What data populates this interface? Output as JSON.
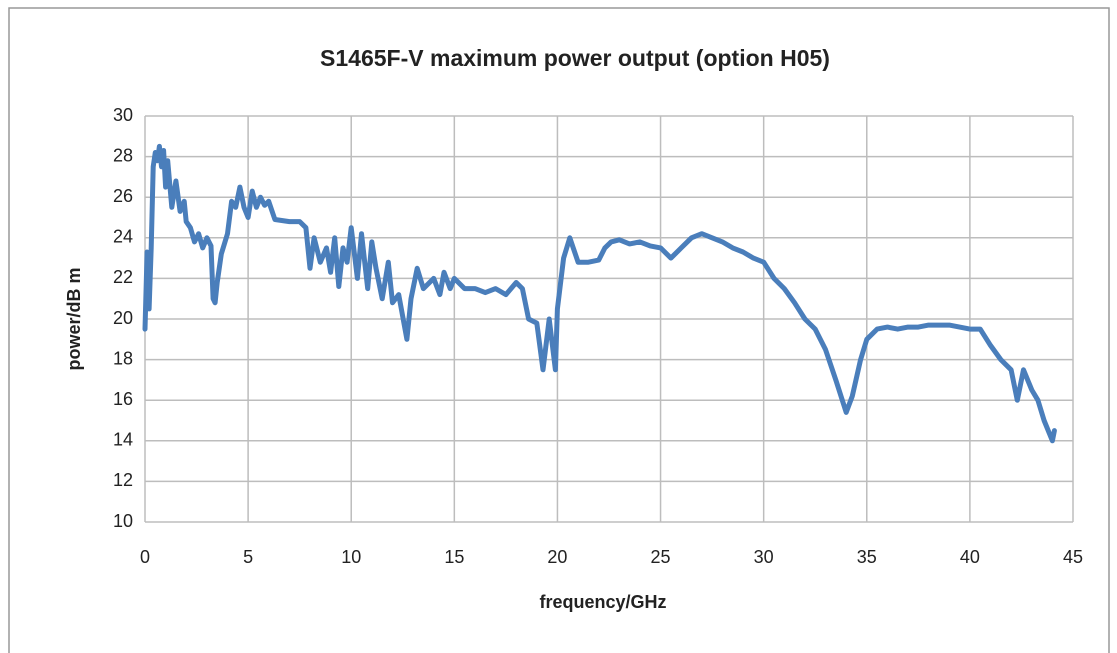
{
  "chart_data": {
    "type": "line",
    "title": "S1465F-V maximum power output (option H05)",
    "x_label": "frequency/GHz",
    "y_label": "power/dB m",
    "x": [
      0,
      0.1,
      0.2,
      0.3,
      0.4,
      0.5,
      0.6,
      0.7,
      0.8,
      0.9,
      1.0,
      1.1,
      1.3,
      1.5,
      1.7,
      1.9,
      2.0,
      2.2,
      2.4,
      2.6,
      2.8,
      3.0,
      3.2,
      3.3,
      3.4,
      3.5,
      3.7,
      4.0,
      4.2,
      4.4,
      4.6,
      4.8,
      5.0,
      5.2,
      5.4,
      5.6,
      5.8,
      6.0,
      6.3,
      7.0,
      7.5,
      7.8,
      8.0,
      8.2,
      8.5,
      8.8,
      9.0,
      9.2,
      9.4,
      9.6,
      9.8,
      10.0,
      10.3,
      10.5,
      10.8,
      11.0,
      11.2,
      11.5,
      11.8,
      12.0,
      12.3,
      12.7,
      12.9,
      13.2,
      13.5,
      14.0,
      14.3,
      14.5,
      14.8,
      15.0,
      15.5,
      16.0,
      16.5,
      17.0,
      17.5,
      18.0,
      18.3,
      18.6,
      19.0,
      19.3,
      19.6,
      19.9,
      20.0,
      20.3,
      20.6,
      21.0,
      21.5,
      22.0,
      22.3,
      22.6,
      23.0,
      23.5,
      24.0,
      24.5,
      25.0,
      25.5,
      26.0,
      26.5,
      27.0,
      27.5,
      28.0,
      28.5,
      29.0,
      29.5,
      30.0,
      30.5,
      31.0,
      31.5,
      32.0,
      32.5,
      33.0,
      33.5,
      34.0,
      34.3,
      34.7,
      35.0,
      35.5,
      36.0,
      36.5,
      37.0,
      37.5,
      38.0,
      38.5,
      39.0,
      39.5,
      40.0,
      40.5,
      41.0,
      41.5,
      42.0,
      42.3,
      42.6,
      43.0,
      43.3,
      43.6,
      44.0,
      44.1
    ],
    "series": [
      {
        "name": "power",
        "color": "#4a7ebb",
        "values": [
          19.5,
          23.3,
          20.5,
          23.5,
          27.5,
          28.2,
          27.8,
          28.5,
          27.5,
          28.3,
          26.5,
          27.8,
          25.5,
          26.8,
          25.3,
          25.8,
          24.8,
          24.5,
          23.8,
          24.2,
          23.5,
          24.0,
          23.6,
          21.0,
          20.8,
          21.8,
          23.2,
          24.2,
          25.8,
          25.5,
          26.5,
          25.5,
          25.0,
          26.3,
          25.5,
          26.0,
          25.6,
          25.8,
          24.9,
          24.8,
          24.8,
          24.5,
          22.5,
          24.0,
          22.8,
          23.5,
          22.3,
          24.0,
          21.6,
          23.5,
          22.8,
          24.5,
          22.0,
          24.2,
          21.5,
          23.8,
          22.5,
          21.0,
          22.8,
          20.8,
          21.2,
          19.0,
          21.0,
          22.5,
          21.5,
          22.0,
          21.2,
          22.3,
          21.5,
          22.0,
          21.5,
          21.5,
          21.3,
          21.5,
          21.2,
          21.8,
          21.5,
          20.0,
          19.8,
          17.5,
          20.0,
          17.5,
          20.5,
          23.0,
          24.0,
          22.8,
          22.8,
          22.9,
          23.5,
          23.8,
          23.9,
          23.7,
          23.8,
          23.6,
          23.5,
          23.0,
          23.5,
          24.0,
          24.2,
          24.0,
          23.8,
          23.5,
          23.3,
          23.0,
          22.8,
          22.0,
          21.5,
          20.8,
          20.0,
          19.5,
          18.5,
          17.0,
          15.4,
          16.2,
          18.0,
          19.0,
          19.5,
          19.6,
          19.5,
          19.6,
          19.6,
          19.7,
          19.7,
          19.7,
          19.6,
          19.5,
          19.5,
          18.7,
          18.0,
          17.5,
          16.0,
          17.5,
          16.5,
          16.0,
          15.0,
          14.0,
          14.5
        ]
      }
    ],
    "xlim": [
      0,
      45
    ],
    "xticks": [
      0,
      5,
      10,
      15,
      20,
      25,
      30,
      35,
      40,
      45
    ],
    "ylim": [
      10,
      30
    ],
    "yticks": [
      10,
      12,
      14,
      16,
      18,
      20,
      22,
      24,
      26,
      28,
      30
    ],
    "grid": true
  }
}
